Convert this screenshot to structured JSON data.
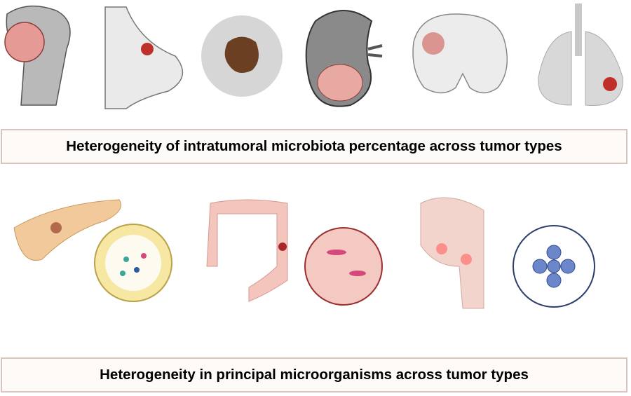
{
  "captions": {
    "top": "Heterogeneity of intratumoral microbiota percentage across tumor types",
    "bottom": "Heterogeneity in principal microorganisms across tumor types"
  },
  "top_row_organs": [
    "bone",
    "breast",
    "skin",
    "kidney",
    "brain",
    "lung"
  ],
  "bottom_row_organs": [
    "pancreas",
    "colon",
    "nasopharynx"
  ],
  "colors": {
    "tumor": "#c9544f",
    "tissue_pink": "#f0b8b0",
    "box_border": "#d6c6bf",
    "box_fill": "#fdfaf7"
  }
}
